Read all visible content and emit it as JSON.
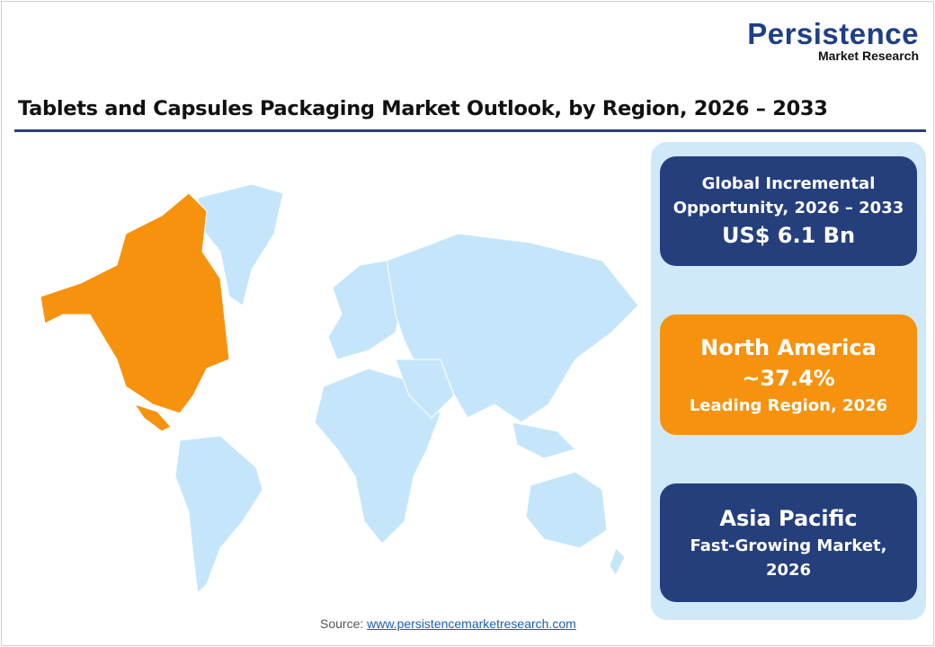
{
  "logo": {
    "main": "Persistence",
    "sub": "Market Research"
  },
  "title": "Tablets and Capsules Packaging Market Outlook, by Region, 2026 – 2033",
  "map": {
    "highlight_region": "North America",
    "highlight_color": "#f7920e",
    "base_color": "#c5e6fa"
  },
  "cards": [
    {
      "line1": "Global Incremental",
      "line2": "Opportunity, 2026 – 2033",
      "line3": "US$ 6.1 Bn",
      "color": "#243f7c"
    },
    {
      "line1": "North America",
      "line2": "~37.4%",
      "line3": "Leading Region, 2026",
      "color": "#f7920e"
    },
    {
      "line1": "Asia Pacific",
      "line2": "Fast-Growing Market,",
      "line3": "2026",
      "color": "#243f7c"
    }
  ],
  "source": {
    "label": "Source:",
    "link": "www.persistencemarketresearch.com"
  }
}
